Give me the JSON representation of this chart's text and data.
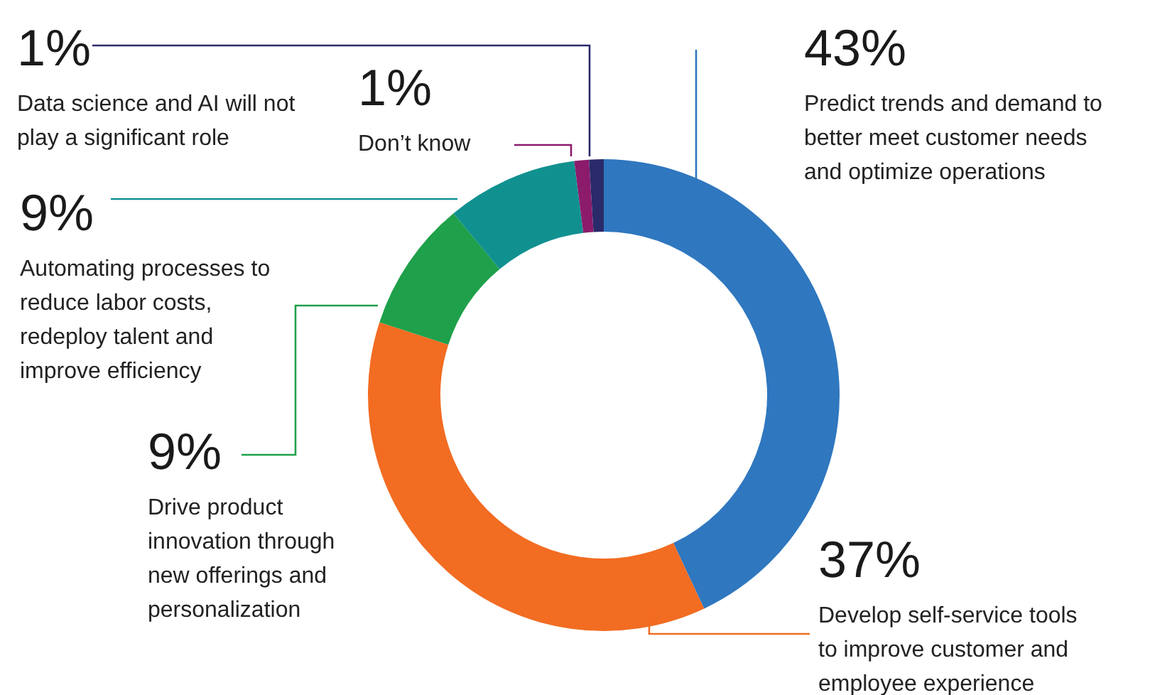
{
  "chart_data": {
    "type": "donut",
    "categories": [
      "Predict trends and demand to better meet customer needs and optimize operations",
      "Develop self-service tools to improve customer and employee experience",
      "Drive product innovation through new offerings and personalization",
      "Automating processes to reduce labor costs, redeploy talent and improve efficiency",
      "Don’t know",
      "Data science and AI will not play a significant role"
    ],
    "values": [
      43,
      37,
      9,
      9,
      1,
      1
    ],
    "colors": [
      "#2f77bf",
      "#f26c22",
      "#1fa04a",
      "#109190",
      "#8c1b6c",
      "#2b2a6b"
    ],
    "value_labels": [
      "43%",
      "37%",
      "9%",
      "9%",
      "1%",
      "1%"
    ]
  }
}
